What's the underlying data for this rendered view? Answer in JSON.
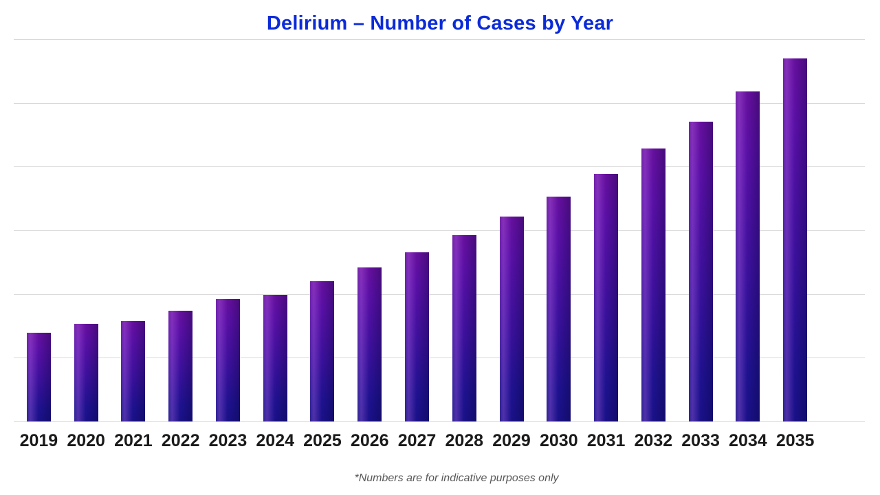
{
  "page": {
    "title": "Delirium – Number of Cases by Year",
    "footnote": "*Numbers are for indicative purposes only"
  },
  "colors": {
    "title": "#0b2bd8",
    "bar_gradient_top": "#5f0fa6",
    "bar_gradient_bottom": "#1a1188",
    "gridline": "#d9d9d9",
    "x_label": "#1a1a1a",
    "footnote": "#595959"
  },
  "chart_data": {
    "type": "bar",
    "title": "Delirium – Number of Cases by Year",
    "categories": [
      "2019",
      "2020",
      "2021",
      "2022",
      "2023",
      "2024",
      "2025",
      "2026",
      "2027",
      "2028",
      "2029",
      "2030",
      "2031",
      "2032",
      "2033",
      "2034",
      "2035"
    ],
    "values": [
      139,
      153,
      158,
      174,
      192,
      199,
      220,
      242,
      265,
      292,
      322,
      353,
      389,
      428,
      471,
      518,
      570
    ],
    "xlabel": "",
    "ylabel": "",
    "ylim": [
      0,
      600
    ],
    "gridline_step": 100,
    "gridline_count": 7,
    "grid": true,
    "y_axis_labels_visible": false,
    "legend": "none",
    "annotation": "*Numbers are for indicative purposes only"
  }
}
